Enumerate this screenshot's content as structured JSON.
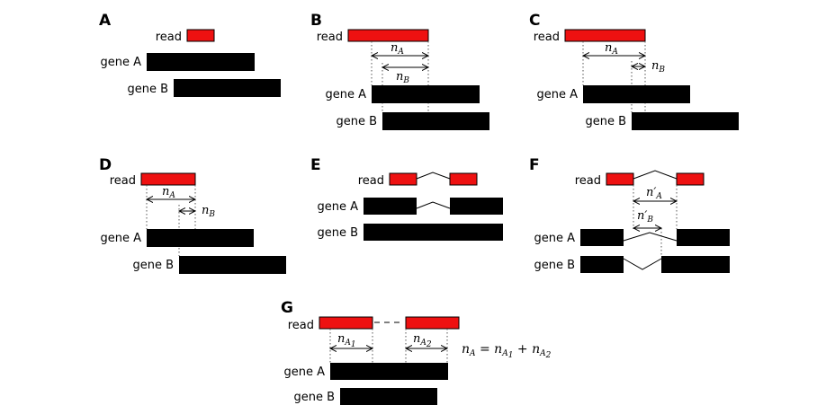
{
  "labels": {
    "read": "read",
    "gene_a": "gene A",
    "gene_b": "gene B"
  },
  "panels": {
    "A": "A",
    "B": "B",
    "C": "C",
    "D": "D",
    "E": "E",
    "F": "F",
    "G": "G"
  },
  "math": {
    "nA": "n",
    "nA_sub": "A",
    "nB": "n",
    "nB_sub": "B",
    "nA_prime": "n′",
    "nA_prime_sub": "A",
    "nB_prime": "n′",
    "nB_prime_sub": "B",
    "nA1": "n",
    "nA1_sub": "A",
    "nA1_subsub": "1",
    "nA2": "n",
    "nA2_sub": "A",
    "nA2_subsub": "2",
    "equation_lhs": "n",
    "equation_lhs_sub": "A",
    "equation_eq": " = ",
    "equation_t1": "n",
    "equation_t1_sub": "A",
    "equation_t1_subsub": "1",
    "equation_plus": " + ",
    "equation_t2": "n",
    "equation_t2_sub": "A",
    "equation_t2_subsub": "2"
  }
}
